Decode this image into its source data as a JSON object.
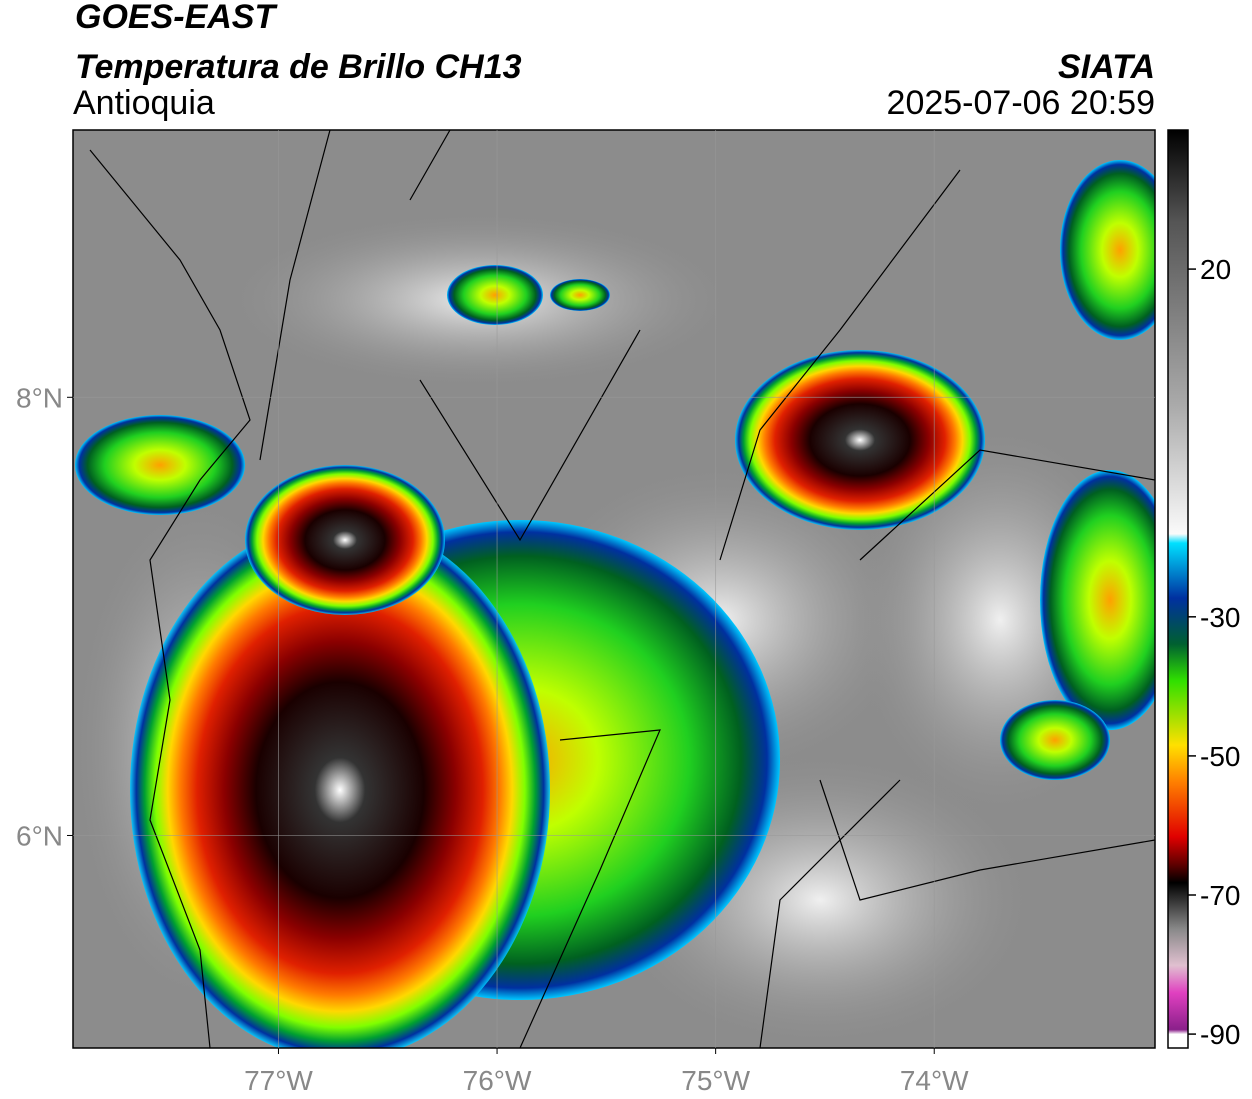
{
  "header": {
    "title": "GOES-EAST",
    "subtitle": "Temperatura de Brillo CH13",
    "region": "Antioquia",
    "source": "SIATA",
    "datetime": "2025-07-06 20:59"
  },
  "map": {
    "xlim": [
      -77.94,
      -72.99
    ],
    "ylim": [
      5.03,
      9.22
    ],
    "xticks": [
      {
        "value": -77,
        "label": "77°W"
      },
      {
        "value": -76,
        "label": "76°W"
      },
      {
        "value": -75,
        "label": "75°W"
      },
      {
        "value": -74,
        "label": "74°W"
      }
    ],
    "yticks": [
      {
        "value": 8,
        "label": "8°N"
      },
      {
        "value": 6,
        "label": "6°N"
      }
    ]
  },
  "colorbar": {
    "lim": [
      -92,
      40
    ],
    "ticks": [
      20,
      -30,
      -50,
      -70,
      -90
    ]
  }
}
